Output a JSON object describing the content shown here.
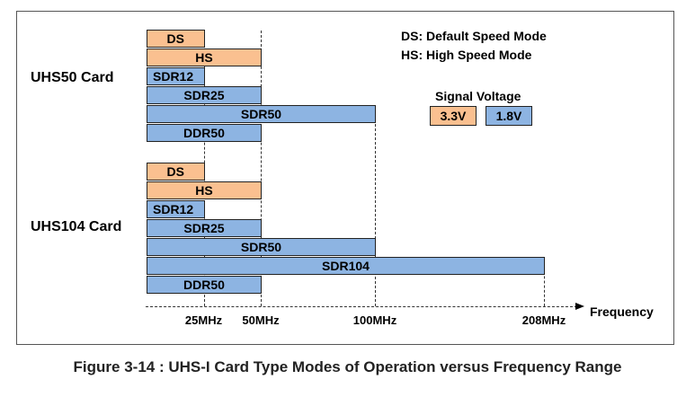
{
  "cards": [
    {
      "label": "UHS50 Card",
      "modes": [
        {
          "name": "DS",
          "max_mhz": 25,
          "voltage": "3.3V"
        },
        {
          "name": "HS",
          "max_mhz": 50,
          "voltage": "3.3V"
        },
        {
          "name": "SDR12",
          "max_mhz": 25,
          "voltage": "1.8V"
        },
        {
          "name": "SDR25",
          "max_mhz": 50,
          "voltage": "1.8V"
        },
        {
          "name": "SDR50",
          "max_mhz": 100,
          "voltage": "1.8V"
        },
        {
          "name": "DDR50",
          "max_mhz": 50,
          "voltage": "1.8V"
        }
      ]
    },
    {
      "label": "UHS104 Card",
      "modes": [
        {
          "name": "DS",
          "max_mhz": 25,
          "voltage": "3.3V"
        },
        {
          "name": "HS",
          "max_mhz": 50,
          "voltage": "3.3V"
        },
        {
          "name": "SDR12",
          "max_mhz": 25,
          "voltage": "1.8V"
        },
        {
          "name": "SDR25",
          "max_mhz": 50,
          "voltage": "1.8V"
        },
        {
          "name": "SDR50",
          "max_mhz": 100,
          "voltage": "1.8V"
        },
        {
          "name": "SDR104",
          "max_mhz": 208,
          "voltage": "1.8V"
        },
        {
          "name": "DDR50",
          "max_mhz": 50,
          "voltage": "1.8V"
        }
      ]
    }
  ],
  "legend": {
    "ds": "DS: Default Speed Mode",
    "hs": "HS: High Speed Mode",
    "signal_voltage_title": "Signal Voltage",
    "v33": "3.3V",
    "v18": "1.8V"
  },
  "colors": {
    "v33": "#fac090",
    "v18": "#8db4e2"
  },
  "axis": {
    "label": "Frequency",
    "ticks": [
      {
        "mhz": 25,
        "label": "25MHz"
      },
      {
        "mhz": 50,
        "label": "50MHz"
      },
      {
        "mhz": 100,
        "label": "100MHz"
      },
      {
        "mhz": 208,
        "label": "208MHz"
      }
    ]
  },
  "caption": "Figure 3-14 : UHS-I Card Type Modes of Operation versus Frequency Range"
}
